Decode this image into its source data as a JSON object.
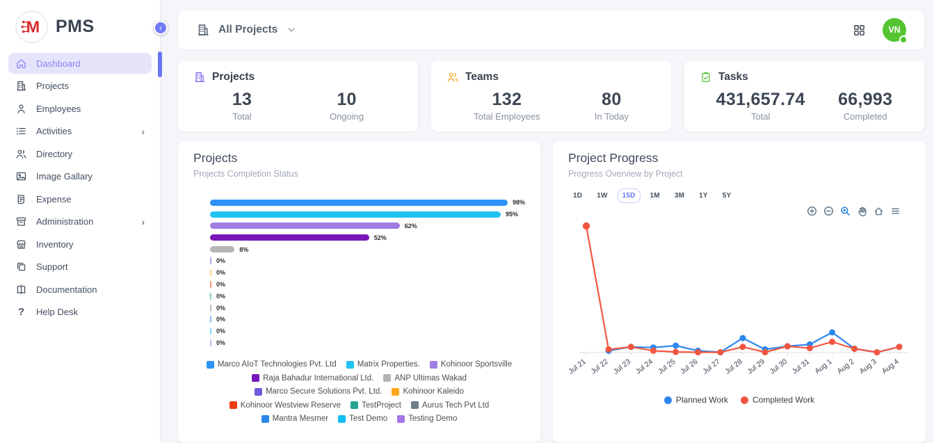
{
  "sidebar": {
    "logo_text": "PMS",
    "items": [
      {
        "label": "Dashboard",
        "icon": "home",
        "active": true,
        "expandable": false
      },
      {
        "label": "Projects",
        "icon": "building",
        "active": false,
        "expandable": false
      },
      {
        "label": "Employees",
        "icon": "person",
        "active": false,
        "expandable": false
      },
      {
        "label": "Activities",
        "icon": "list",
        "active": false,
        "expandable": true
      },
      {
        "label": "Directory",
        "icon": "people",
        "active": false,
        "expandable": false
      },
      {
        "label": "Image Gallary",
        "icon": "image",
        "active": false,
        "expandable": false
      },
      {
        "label": "Expense",
        "icon": "receipt",
        "active": false,
        "expandable": false
      },
      {
        "label": "Administration",
        "icon": "archive",
        "active": false,
        "expandable": true
      },
      {
        "label": "Inventory",
        "icon": "store",
        "active": false,
        "expandable": false
      },
      {
        "label": "Support",
        "icon": "copy",
        "active": false,
        "expandable": false
      },
      {
        "label": "Documentation",
        "icon": "book",
        "active": false,
        "expandable": false
      },
      {
        "label": "Help Desk",
        "icon": "question",
        "active": false,
        "expandable": false
      }
    ]
  },
  "topbar": {
    "filter_label": "All Projects",
    "avatar_initials": "VN"
  },
  "stats": [
    {
      "title": "Projects",
      "icon": "building",
      "icon_color": "#7c6bf2",
      "metrics": [
        {
          "value": "13",
          "label": "Total"
        },
        {
          "value": "10",
          "label": "Ongoing"
        }
      ]
    },
    {
      "title": "Teams",
      "icon": "people",
      "icon_color": "#f2a81d",
      "metrics": [
        {
          "value": "132",
          "label": "Total Employees"
        },
        {
          "value": "80",
          "label": "In Today"
        }
      ]
    },
    {
      "title": "Tasks",
      "icon": "clipboard",
      "icon_color": "#56c23d",
      "metrics": [
        {
          "value": "431,657.74",
          "label": "Total"
        },
        {
          "value": "66,993",
          "label": "Completed"
        }
      ]
    }
  ],
  "chart_data": [
    {
      "type": "bar",
      "title": "Projects",
      "subtitle": "Projects Completion Status",
      "orientation": "horizontal",
      "unit": "%",
      "xlim": [
        0,
        100
      ],
      "legend_position": "bottom",
      "categories": [
        "Marco AIoT Technologies Pvt. Ltd",
        "Matrix Properties.",
        "Kohinoor Sportsville",
        "Raja Bahadur International Ltd.",
        "ANP Ultimas Wakad",
        "Marco Secure Solutions Pvt. Ltd.",
        "Kohinoor Kaleido",
        "Kohinoor Westview Reserve",
        "TestProject",
        "Aurus Tech Pvt Ltd",
        "Mantra Mesmer",
        "Test Demo",
        "Testing Demo"
      ],
      "values": [
        98,
        95,
        62,
        52,
        8,
        0,
        0,
        0,
        0,
        0,
        0,
        0,
        0
      ],
      "value_labels": [
        "98%",
        "95%",
        "62%",
        "52%",
        "8%",
        "0%",
        "0%",
        "0%",
        "0%",
        "0%",
        "0%",
        "0%",
        "0%"
      ],
      "colors": [
        "#2f93f6",
        "#21c3f3",
        "#a17de2",
        "#7818b9",
        "#b5b5b5",
        "#6c5cd9",
        "#ffa71f",
        "#ee3d13",
        "#27a392",
        "#6d7f8b",
        "#2c87e8",
        "#12c1ef",
        "#a476e8"
      ]
    },
    {
      "type": "line",
      "title": "Project Progress",
      "subtitle": "Progress Overview by Project",
      "legend_position": "bottom",
      "grid": false,
      "ylim": [
        0,
        105
      ],
      "range_buttons": [
        "1D",
        "1W",
        "15D",
        "1M",
        "3M",
        "1Y",
        "5Y"
      ],
      "active_range": "15D",
      "toolbar_icons": [
        "zoom-in",
        "zoom-out",
        "zoom",
        "pan",
        "home",
        "menu"
      ],
      "active_tool": "zoom",
      "x": [
        "Jul 21",
        "Jul 22",
        "Jul 23",
        "Jul 24",
        "Jul 25",
        "Jul 26",
        "Jul 27",
        "Jul 28",
        "Jul 29",
        "Jul 30",
        "Jul 31",
        "Aug 1",
        "Aug 2",
        "Aug 3",
        "Aug 4"
      ],
      "series": [
        {
          "name": "Planned Work",
          "color": "#2f86f0",
          "values": [
            null,
            1.5,
            4.5,
            4,
            5.5,
            1.5,
            0.3,
            11.5,
            2.5,
            5,
            6.5,
            16,
            3,
            0.3,
            4.5
          ]
        },
        {
          "name": "Completed Work",
          "color": "#f25540",
          "values": [
            100,
            2.5,
            4.5,
            1.5,
            0.5,
            0.3,
            0.2,
            4.5,
            0.3,
            5,
            3.5,
            8.5,
            3,
            0.2,
            4.5
          ]
        }
      ]
    }
  ]
}
